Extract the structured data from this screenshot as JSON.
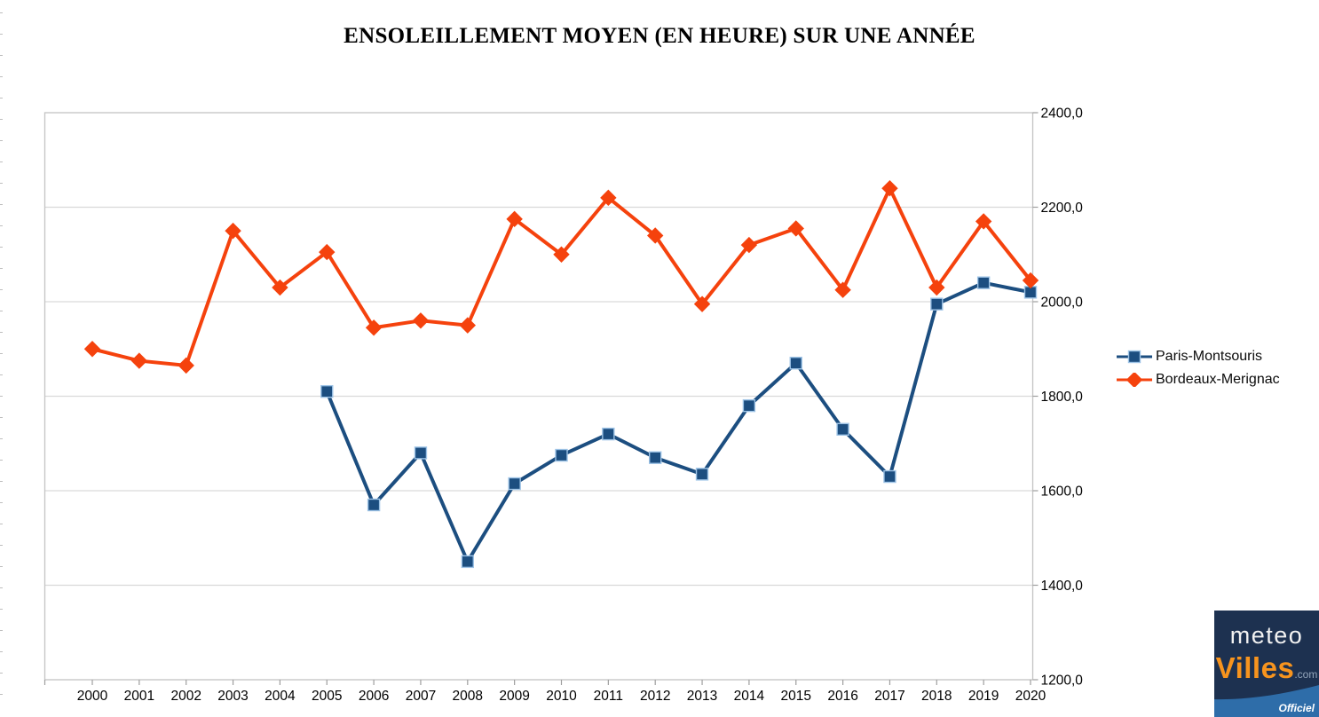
{
  "title": "ENSOLEILLEMENT MOYEN (EN HEURE) SUR UNE ANNÉE",
  "chart_data": {
    "type": "line",
    "title": "ENSOLEILLEMENT MOYEN (EN HEURE) SUR UNE ANNÉE",
    "categories": [
      "2000",
      "2001",
      "2002",
      "2003",
      "2004",
      "2005",
      "2006",
      "2007",
      "2008",
      "2009",
      "2010",
      "2011",
      "2012",
      "2013",
      "2014",
      "2015",
      "2016",
      "2017",
      "2018",
      "2019",
      "2020"
    ],
    "series": [
      {
        "name": "Paris-Montsouris",
        "color": "#1c4e80",
        "marker": "square",
        "marker_edge": "#9dc3e6",
        "values": [
          null,
          null,
          null,
          null,
          null,
          1810,
          1570,
          1680,
          1450,
          1615,
          1675,
          1720,
          1670,
          1635,
          1780,
          1870,
          1730,
          1630,
          1995,
          2040,
          2020
        ]
      },
      {
        "name": "Bordeaux-Merignac",
        "color": "#f5420d",
        "marker": "diamond",
        "marker_edge": "#f5420d",
        "values": [
          1900,
          1875,
          1865,
          2150,
          2030,
          2105,
          1945,
          1960,
          1950,
          2175,
          2100,
          2220,
          2140,
          1995,
          2120,
          2155,
          2025,
          2240,
          2030,
          2170,
          2045
        ]
      }
    ],
    "ylim": [
      1200,
      2400
    ],
    "ytick_step": 200,
    "ytick_labels": [
      "2400,0",
      "2200,0",
      "2000,0",
      "1800,0",
      "1600,0",
      "1400,0",
      "1200,0"
    ],
    "xlabel": "",
    "ylabel": "",
    "grid": "horizontal",
    "value_axis_side": "right",
    "legend_position": "right"
  },
  "colors": {
    "gridline": "#d9d9d9",
    "plot_border": "#c3c3c3",
    "tick": "#9e9e9e",
    "axis_text": "#000000"
  },
  "logo": {
    "line1": "meteo",
    "line2": "Villes",
    "suffix": ".com",
    "badge": "Officiel",
    "bg_color": "#1d3150",
    "line1_color": "#f2f2f2",
    "line2_color": "#f7941e",
    "suffix_color": "#93a5ba",
    "swoosh_color": "#2e6da9",
    "badge_color": "#ffffff"
  }
}
